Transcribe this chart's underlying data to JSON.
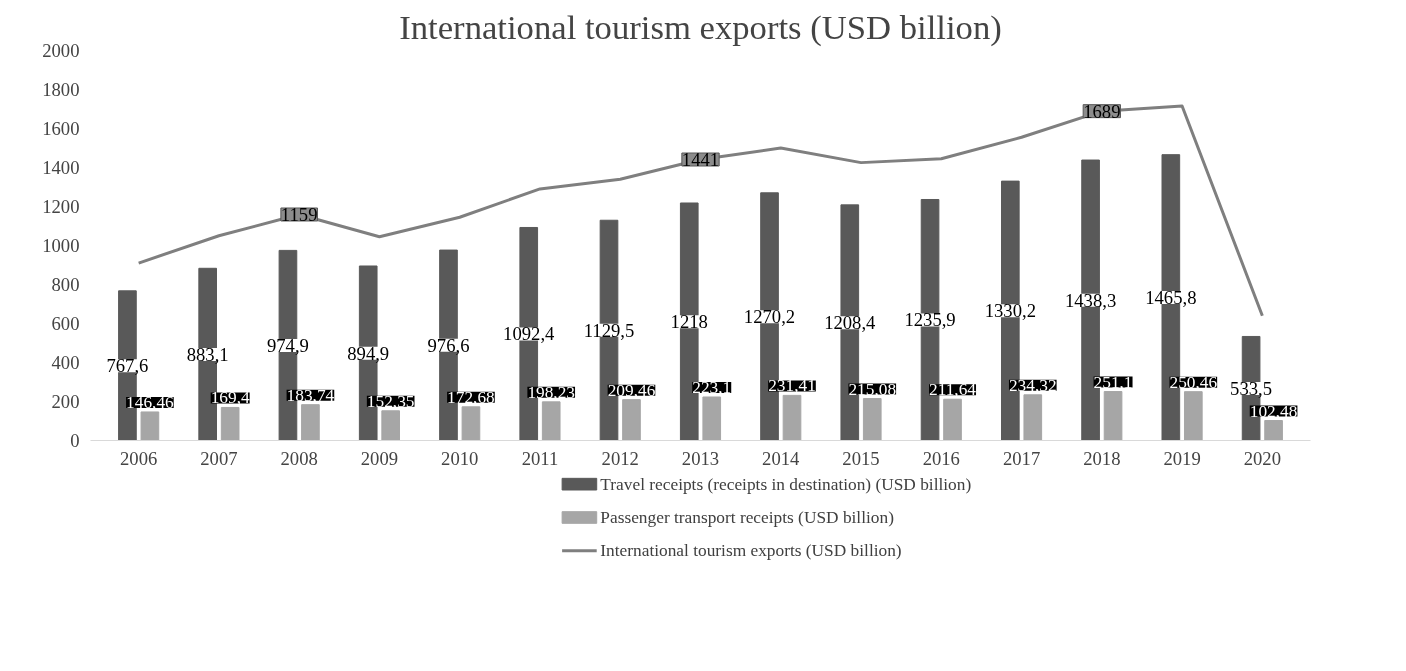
{
  "chart_data": {
    "type": "bar",
    "title": "International tourism exports (USD billion)",
    "categories": [
      "2006",
      "2007",
      "2008",
      "2009",
      "2010",
      "2011",
      "2012",
      "2013",
      "2014",
      "2015",
      "2016",
      "2017",
      "2018",
      "2019",
      "2020"
    ],
    "series": [
      {
        "name": "Travel receipts (receipts in destination) (USD billion)",
        "color": "#595959",
        "values": [
          767.6,
          883.1,
          974.9,
          894.9,
          976.6,
          1092.4,
          1129.5,
          1218,
          1270.2,
          1208.4,
          1235.9,
          1330.2,
          1438.3,
          1465.8,
          533.5
        ],
        "value_labels": [
          "767,6",
          "883,1",
          "974,9",
          "894,9",
          "976,6",
          "1092,4",
          "1129,5",
          "1218",
          "1270,2",
          "1208,4",
          "1235,9",
          "1330,2",
          "1438,3",
          "1465,8",
          "533,5"
        ]
      },
      {
        "name": "Passenger transport receipts (USD billion)",
        "color": "#a6a6a6",
        "values": [
          146.46,
          169.4,
          183.74,
          152.35,
          172.68,
          198.23,
          209.46,
          223.1,
          231.41,
          215.08,
          211.64,
          234.32,
          251.1,
          250.46,
          102.48
        ],
        "value_labels": [
          "146,46",
          "169,4",
          "183,74",
          "152,35",
          "172,68",
          "198,23",
          "209,46",
          "223,1",
          "231,41",
          "215,08",
          "211,64",
          "234,32",
          "251,1",
          "250,46",
          "102,48"
        ]
      },
      {
        "name": "International tourism exports (USD billion)",
        "type": "line",
        "color": "#7f7f7f",
        "values": [
          910,
          1050,
          1159,
          1045,
          1145,
          1290,
          1340,
          1441,
          1500,
          1425,
          1445,
          1555,
          1689,
          1715,
          640
        ],
        "value_labels": [
          null,
          null,
          "1159",
          null,
          null,
          null,
          null,
          "1441",
          null,
          null,
          null,
          null,
          "1689",
          null,
          null
        ]
      }
    ],
    "ylim": [
      0,
      2000
    ],
    "yticks": [
      0,
      200,
      400,
      600,
      800,
      1000,
      1200,
      1400,
      1600,
      1800,
      2000
    ],
    "legend": "bottom",
    "line_style": "solid"
  }
}
